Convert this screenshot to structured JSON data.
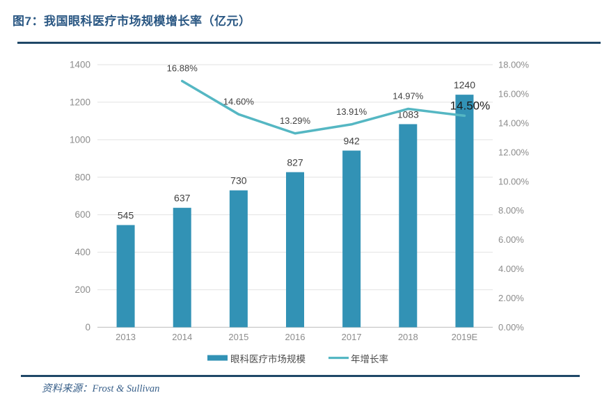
{
  "figure": {
    "title": "图7：我国眼科医疗市场规模增长率（亿元）",
    "source_label": "资料来源：",
    "source_name": "Frost & Sullivan"
  },
  "colors": {
    "bar": "#3292B5",
    "line": "#55B7C3",
    "title_text": "#2A5783",
    "divider": "#1F4767",
    "source_text": "#39608A",
    "axis_label": "#8C8C8C",
    "data_label": "#404040",
    "highlight_label": "#1A1A1A",
    "legend_text": "#4D4D4D",
    "gridline": "#E2E2E2",
    "axis_line": "#C6C6C6",
    "background": "#FFFFFF"
  },
  "chart_data": {
    "type": "combo",
    "title": "图7：我国眼科医疗市场规模增长率（亿元）",
    "categories": [
      "2013",
      "2014",
      "2015",
      "2016",
      "2017",
      "2018",
      "2019E"
    ],
    "series": [
      {
        "name": "眼科医疗市场规模",
        "type": "bar",
        "axis": "left",
        "values": [
          545,
          637,
          730,
          827,
          942,
          1083,
          1240
        ],
        "labels": [
          "545",
          "637",
          "730",
          "827",
          "942",
          "1083",
          "1240"
        ]
      },
      {
        "name": "年增长率",
        "type": "line",
        "axis": "right",
        "values": [
          null,
          16.88,
          14.6,
          13.29,
          13.91,
          14.97,
          14.5
        ],
        "labels": [
          null,
          "16.88%",
          "14.60%",
          "13.29%",
          "13.91%",
          "14.97%",
          "14.50%"
        ]
      }
    ],
    "left_axis": {
      "min": 0,
      "max": 1400,
      "step": 200,
      "tick_labels": [
        "0",
        "200",
        "400",
        "600",
        "800",
        "1000",
        "1200",
        "1400"
      ]
    },
    "right_axis": {
      "min": 0,
      "max": 18,
      "step": 2,
      "tick_labels": [
        "0.00%",
        "2.00%",
        "4.00%",
        "6.00%",
        "8.00%",
        "10.00%",
        "12.00%",
        "14.00%",
        "16.00%",
        "18.00%"
      ]
    },
    "grid": true,
    "legend_position": "bottom",
    "highlighted_label": "14.50%"
  }
}
